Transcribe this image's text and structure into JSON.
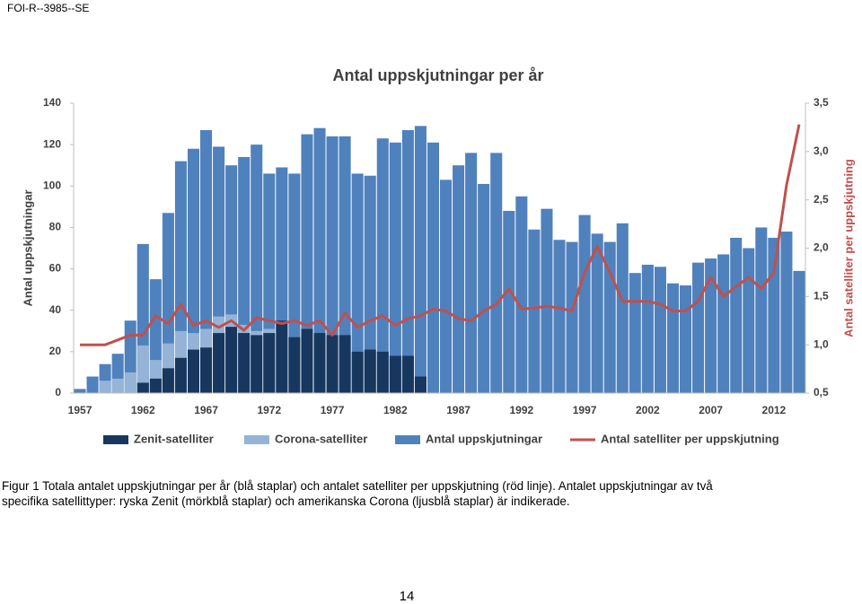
{
  "header": "FOI-R--3985--SE",
  "chart_data": {
    "type": "bar",
    "title": "Antal uppskjutningar per år",
    "y_label": "Antal uppskjutningar",
    "y2_label": "Antal satelliter per uppskjutning",
    "categories": [
      "1957",
      null,
      null,
      null,
      null,
      "1962",
      null,
      null,
      null,
      null,
      "1967",
      null,
      null,
      null,
      null,
      "1972",
      null,
      null,
      null,
      null,
      "1977",
      null,
      null,
      null,
      null,
      "1982",
      null,
      null,
      null,
      null,
      "1987",
      null,
      null,
      null,
      null,
      "1992",
      null,
      null,
      null,
      null,
      "1997",
      null,
      null,
      null,
      null,
      "2002",
      null,
      null,
      null,
      null,
      "2007",
      null,
      null,
      null,
      null,
      "2012",
      null,
      null
    ],
    "series": [
      {
        "name": "Zenit-satelliter",
        "color": "#17375e",
        "values": [
          null,
          null,
          null,
          null,
          null,
          5,
          7,
          12,
          17,
          21,
          22,
          29,
          32,
          29,
          28,
          29,
          35,
          27,
          31,
          29,
          28,
          28,
          20,
          21,
          20,
          18,
          18,
          8,
          null,
          null,
          null,
          null,
          null,
          null,
          null,
          null,
          null,
          null,
          null,
          null,
          null,
          null,
          null,
          null,
          null,
          null,
          null,
          null,
          null,
          null,
          null,
          null,
          null,
          null,
          null,
          null,
          null,
          null
        ]
      },
      {
        "name": "Corona-satelliter",
        "color": "#95b3d7",
        "values": [
          null,
          null,
          6,
          7,
          10,
          23,
          16,
          24,
          30,
          29,
          31,
          37,
          38,
          33,
          30,
          31,
          null,
          null,
          null,
          null,
          null,
          null,
          null,
          null,
          null,
          null,
          null,
          null,
          null,
          null,
          null,
          null,
          null,
          null,
          null,
          null,
          null,
          null,
          null,
          null,
          null,
          null,
          null,
          null,
          null,
          null,
          null,
          null,
          null,
          null,
          null,
          null,
          null,
          null,
          null,
          null,
          null,
          null
        ]
      },
      {
        "name": "Antal uppskjutningar",
        "color": "#4f81bd",
        "values": [
          2,
          8,
          14,
          19,
          35,
          72,
          55,
          87,
          112,
          118,
          127,
          119,
          110,
          114,
          120,
          106,
          109,
          106,
          125,
          128,
          124,
          124,
          106,
          105,
          123,
          121,
          127,
          129,
          121,
          103,
          110,
          116,
          101,
          116,
          88,
          95,
          79,
          89,
          74,
          73,
          86,
          77,
          73,
          82,
          58,
          62,
          61,
          53,
          52,
          63,
          65,
          67,
          75,
          70,
          80,
          75,
          78,
          59
        ]
      },
      {
        "name": "Antal satelliter per uppskjutning",
        "color": "#c0504d",
        "type": "line",
        "axis": "y2",
        "values": [
          1.0,
          1.0,
          1.0,
          1.05,
          1.1,
          1.1,
          1.3,
          1.22,
          1.42,
          1.2,
          1.25,
          1.18,
          1.25,
          1.15,
          1.28,
          1.25,
          1.22,
          1.25,
          1.2,
          1.25,
          1.1,
          1.33,
          1.18,
          1.25,
          1.3,
          1.2,
          1.27,
          1.3,
          1.37,
          1.35,
          1.27,
          1.25,
          1.35,
          1.42,
          1.58,
          1.37,
          1.38,
          1.4,
          1.38,
          1.35,
          1.75,
          2.02,
          1.75,
          1.45,
          1.45,
          1.45,
          1.42,
          1.35,
          1.35,
          1.45,
          1.7,
          1.5,
          1.6,
          1.7,
          1.58,
          1.75,
          2.65,
          3.28
        ]
      }
    ],
    "ylim": [
      0,
      140
    ],
    "yticks": [
      0,
      20,
      40,
      60,
      80,
      100,
      120,
      140
    ],
    "y2lim": [
      0.5,
      3.5
    ],
    "y2ticks": [
      {
        "value": 0.5,
        "label": "0,5"
      },
      {
        "value": 1.0,
        "label": "1,0"
      },
      {
        "value": 1.5,
        "label": "1,5"
      },
      {
        "value": 2.0,
        "label": "2,0"
      },
      {
        "value": 2.5,
        "label": "2,5"
      },
      {
        "value": 3.0,
        "label": "3,0"
      },
      {
        "value": 3.5,
        "label": "3,5"
      }
    ],
    "y2_label_color": "#c0504d",
    "legend": "bottom"
  },
  "caption": [
    "Figur 1 Totala antalet uppskjutningar per år (blå staplar) och antalet satelliter per uppskjutning (röd linje). Antalet uppskjutningar av två",
    "specifika satellittyper: ryska Zenit (mörkblå staplar) och amerikanska Corona (ljusblå staplar) är indikerade."
  ],
  "page_number": "14"
}
